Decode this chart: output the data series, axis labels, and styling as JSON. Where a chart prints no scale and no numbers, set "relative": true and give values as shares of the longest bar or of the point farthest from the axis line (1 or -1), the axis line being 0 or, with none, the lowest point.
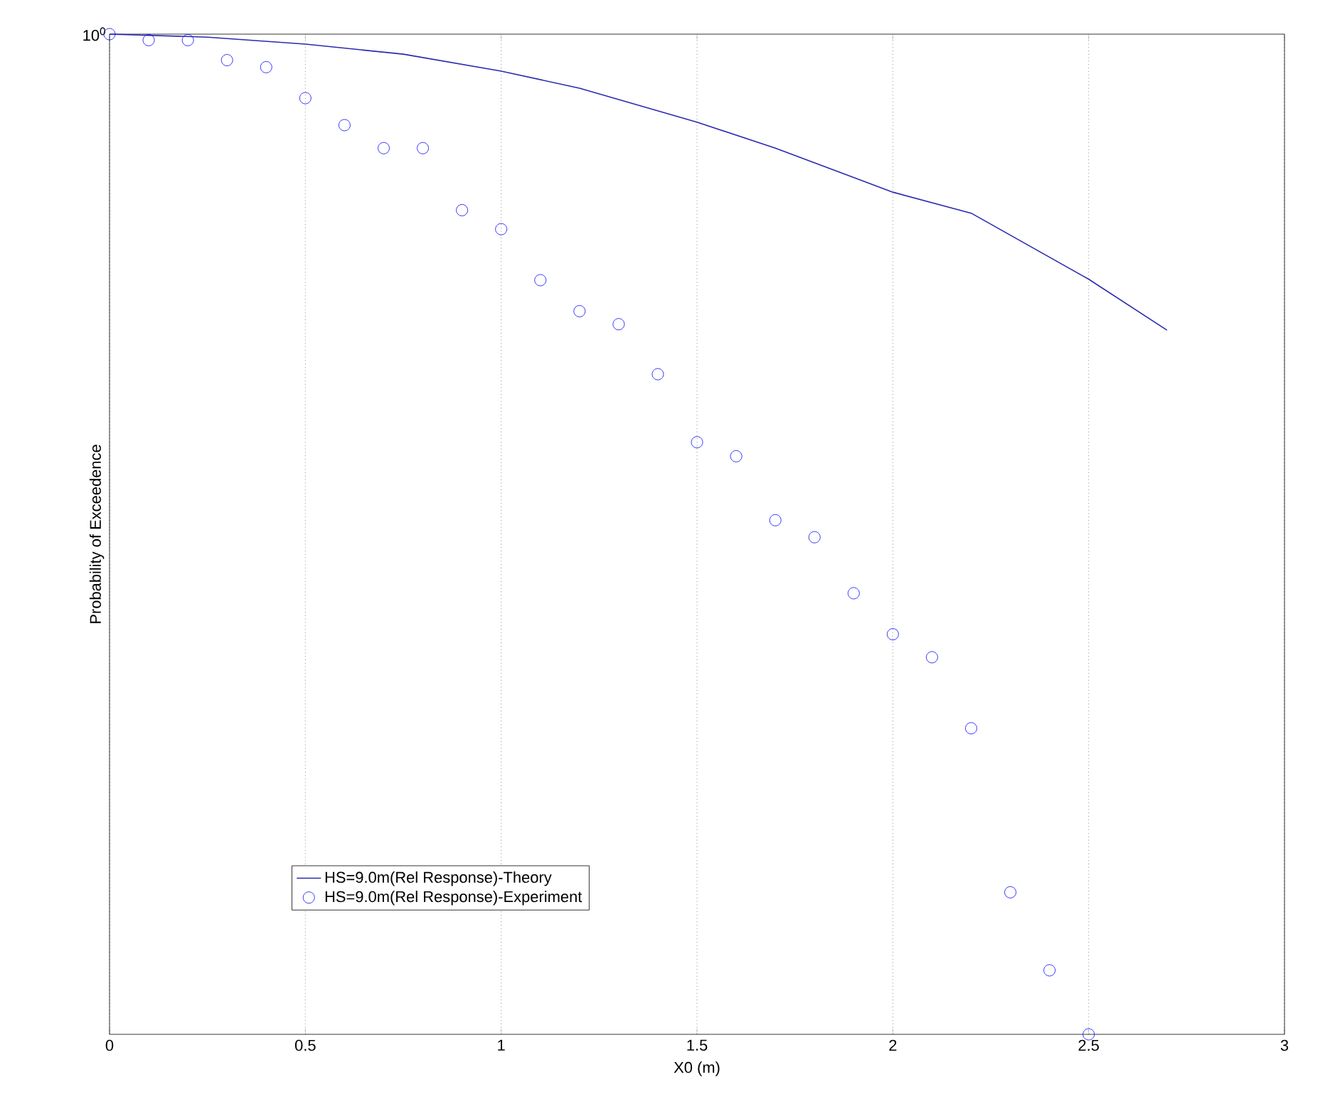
{
  "chart_data": {
    "type": "line",
    "xlabel": "X0 (m)",
    "ylabel": "Probability of Exceedence",
    "xlim": [
      0,
      3
    ],
    "xticks": [
      0,
      0.5,
      1,
      1.5,
      2,
      2.5,
      3
    ],
    "relative": true,
    "annotations": [
      "10$^{0}$"
    ],
    "grid": "x",
    "legend": "bottom left",
    "series": [
      {
        "name": "HS=9.0m(Rel Response)-Theory",
        "color": "#2a2ab0",
        "line_style": "solid",
        "x": [
          0,
          0.25,
          0.5,
          0.75,
          1.0,
          1.2,
          1.5,
          1.7,
          2.0,
          2.2,
          2.5,
          2.7
        ],
        "values": [
          1,
          0.997,
          0.99,
          0.98,
          0.963,
          0.946,
          0.912,
          0.886,
          0.842,
          0.821,
          0.755,
          0.704
        ]
      },
      {
        "name": "HS=9.0m(Rel Response)-Experiment",
        "type": "scatter",
        "color": "#0000ff",
        "marker": "circle",
        "x": [
          0,
          0.1,
          0.2,
          0.3,
          0.4,
          0.5,
          0.6,
          0.7,
          0.8,
          0.9,
          1.0,
          1.1,
          1.2,
          1.3,
          1.4,
          1.5,
          1.6,
          1.7,
          1.8,
          1.9,
          2.0,
          2.1,
          2.2,
          2.3,
          2.4,
          2.5
        ],
        "values": [
          1,
          0.994,
          0.994,
          0.974,
          0.967,
          0.936,
          0.909,
          0.886,
          0.886,
          0.824,
          0.805,
          0.754,
          0.723,
          0.71,
          0.66,
          0.592,
          0.578,
          0.514,
          0.497,
          0.441,
          0.4,
          0.377,
          0.306,
          0.142,
          0.064,
          0
        ]
      }
    ]
  }
}
